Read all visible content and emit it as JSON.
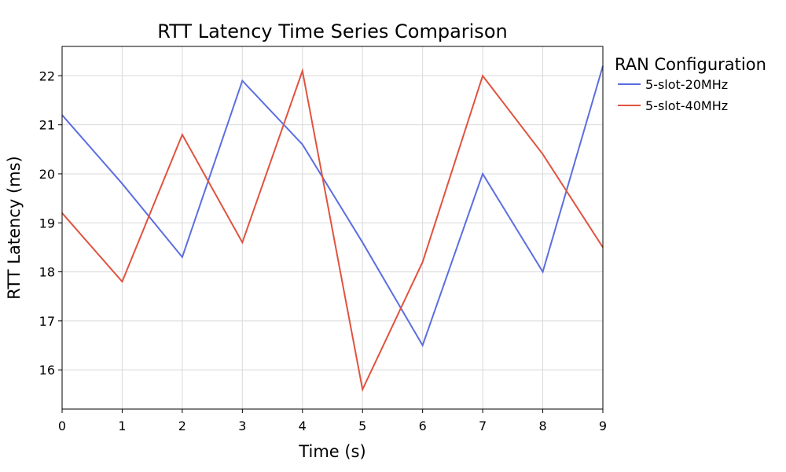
{
  "chart_data": {
    "type": "line",
    "title": "RTT Latency Time Series Comparison",
    "xlabel": "Time (s)",
    "ylabel": "RTT Latency (ms)",
    "x": [
      0,
      1,
      2,
      3,
      4,
      5,
      6,
      7,
      8,
      9
    ],
    "xlim": [
      0,
      9
    ],
    "ylim": [
      15.2,
      22.6
    ],
    "xticks": [
      0,
      1,
      2,
      3,
      4,
      5,
      6,
      7,
      8,
      9
    ],
    "yticks": [
      16,
      17,
      18,
      19,
      20,
      21,
      22
    ],
    "grid": true,
    "legend": {
      "title": "RAN Configuration",
      "placement": "outside-right"
    },
    "series": [
      {
        "name": "5-slot-20MHz",
        "color": "#5b6ee1",
        "values": [
          21.2,
          19.8,
          18.3,
          21.9,
          20.6,
          18.6,
          16.5,
          20.0,
          18.0,
          22.2
        ]
      },
      {
        "name": "5-slot-40MHz",
        "color": "#e0533f",
        "values": [
          19.2,
          17.8,
          20.8,
          18.6,
          22.1,
          15.6,
          18.2,
          22.0,
          20.4,
          18.5
        ]
      }
    ]
  }
}
